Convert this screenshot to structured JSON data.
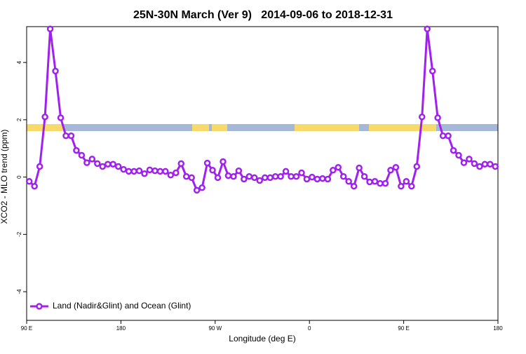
{
  "chart_data": {
    "type": "line",
    "title": "25N-30N March (Ver 9)   2014-09-06 to 2018-12-31",
    "x_label": "Longitude (deg E)",
    "y_label": "XCO2 - MLO trend (ppm)",
    "x": [
      92.5,
      97.5,
      102.5,
      107.5,
      112.5,
      117.5,
      122.5,
      127.5,
      132.5,
      137.5,
      142.5,
      147.5,
      152.5,
      157.5,
      162.5,
      167.5,
      172.5,
      177.5,
      182.5,
      187.5,
      192.5,
      197.5,
      202.5,
      207.5,
      212.5,
      217.5,
      222.5,
      227.5,
      232.5,
      237.5,
      242.5,
      247.5,
      252.5,
      257.5,
      262.5,
      267.5,
      272.5,
      277.5,
      282.5,
      287.5,
      292.5,
      297.5,
      302.5,
      307.5,
      312.5,
      317.5,
      322.5,
      327.5,
      332.5,
      337.5,
      342.5,
      347.5,
      352.5,
      357.5,
      362.5,
      367.5,
      372.5,
      377.5,
      382.5,
      387.5,
      392.5,
      397.5,
      402.5,
      407.5,
      412.5,
      417.5,
      422.5,
      427.5,
      432.5,
      437.5,
      442.5,
      447.5,
      452.5,
      457.5,
      462.5,
      467.5,
      472.5,
      477.5,
      482.5,
      487.5,
      492.5,
      497.5,
      502.5,
      507.5,
      512.5,
      517.5,
      522.5,
      527.5,
      532.5,
      537.5
    ],
    "series": [
      {
        "name": "Land (Nadir&Glint) and Ocean (Glint)",
        "color": "#a020f0",
        "values": [
          -0.15,
          -0.32,
          0.37,
          2.1,
          5.17,
          3.7,
          2.07,
          1.44,
          1.44,
          0.93,
          0.76,
          0.5,
          0.63,
          0.47,
          0.37,
          0.45,
          0.45,
          0.37,
          0.27,
          0.2,
          0.2,
          0.22,
          0.12,
          0.25,
          0.22,
          0.2,
          0.2,
          0.07,
          0.15,
          0.47,
          0.02,
          -0.02,
          -0.46,
          -0.37,
          0.49,
          0.24,
          -0.02,
          0.54,
          0.05,
          0.02,
          0.22,
          -0.07,
          0.02,
          -0.02,
          -0.12,
          -0.02,
          -0.02,
          0.02,
          0.02,
          0.2,
          0.02,
          0.02,
          0.15,
          -0.07,
          0,
          -0.07,
          -0.05,
          -0.07,
          0.24,
          0.34,
          0.02,
          -0.15,
          -0.32,
          0.32,
          0.02,
          -0.17,
          -0.15,
          -0.22,
          -0.22,
          0.24,
          0.34,
          -0.32,
          -0.15,
          -0.32,
          0.37,
          2.1,
          5.17,
          3.7,
          2.07,
          1.44,
          1.44,
          0.93,
          0.76,
          0.5,
          0.63,
          0.47,
          0.37,
          0.45,
          0.45,
          0.37
        ]
      }
    ],
    "xlim": [
      90,
      540
    ],
    "xticks": [
      {
        "value": 90,
        "label": "90 E"
      },
      180,
      {
        "value": 270,
        "label": "90 W"
      },
      {
        "value": 360,
        "label": "0"
      },
      {
        "value": 450,
        "label": "90 E"
      },
      {
        "value": 540,
        "label": "180"
      }
    ],
    "ylim": [
      -5,
      5.25
    ],
    "yticks": [
      -4,
      -2,
      0,
      2,
      4
    ],
    "legend": "bottom-left"
  }
}
